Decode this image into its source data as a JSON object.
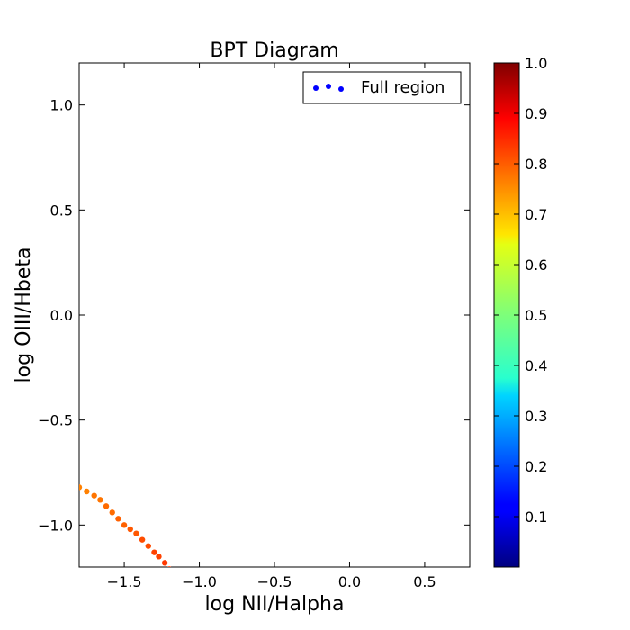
{
  "chart_data": {
    "type": "scatter",
    "title": "BPT Diagram",
    "xlabel": "log NII/Halpha",
    "ylabel": "log OIII/Hbeta",
    "xlim": [
      -1.8,
      0.8
    ],
    "ylim": [
      -1.2,
      1.2
    ],
    "xticks": [
      -1.5,
      -1.0,
      -0.5,
      0.0,
      0.5
    ],
    "xtick_labels": [
      "−1.5",
      "−1.0",
      "−0.5",
      "0.0",
      "0.5"
    ],
    "yticks": [
      -1.0,
      -0.5,
      0.0,
      0.5,
      1.0
    ],
    "ytick_labels": [
      "−1.0",
      "−0.5",
      "0.0",
      "0.5",
      "1.0"
    ],
    "grid": false,
    "legend": {
      "placement": "top-right",
      "entries": [
        "Full region"
      ],
      "marker_color": "#0000ff"
    },
    "colorbar": {
      "colormap": "jet",
      "range": [
        0.0,
        1.0
      ],
      "ticks": [
        0.1,
        0.2,
        0.3,
        0.4,
        0.5,
        0.6,
        0.7,
        0.8,
        0.9,
        1.0
      ],
      "tick_labels": [
        "0.1",
        "0.2",
        "0.3",
        "0.4",
        "0.5",
        "0.6",
        "0.7",
        "0.8",
        "0.9",
        "1.0"
      ]
    },
    "series": [
      {
        "x": [
          -1.8,
          -1.75,
          -1.7,
          -1.66,
          -1.62,
          -1.58,
          -1.54,
          -1.5,
          -1.46,
          -1.42,
          -1.38,
          -1.34,
          -1.3,
          -1.27,
          -1.23,
          -1.2
        ],
        "y": [
          -0.82,
          -0.84,
          -0.86,
          -0.88,
          -0.91,
          -0.94,
          -0.97,
          -1.0,
          -1.02,
          -1.04,
          -1.07,
          -1.1,
          -1.13,
          -1.15,
          -1.18,
          -1.21
        ],
        "c": [
          0.75,
          0.75,
          0.76,
          0.76,
          0.77,
          0.77,
          0.78,
          0.78,
          0.79,
          0.79,
          0.8,
          0.8,
          0.81,
          0.81,
          0.82,
          0.82
        ]
      }
    ]
  }
}
